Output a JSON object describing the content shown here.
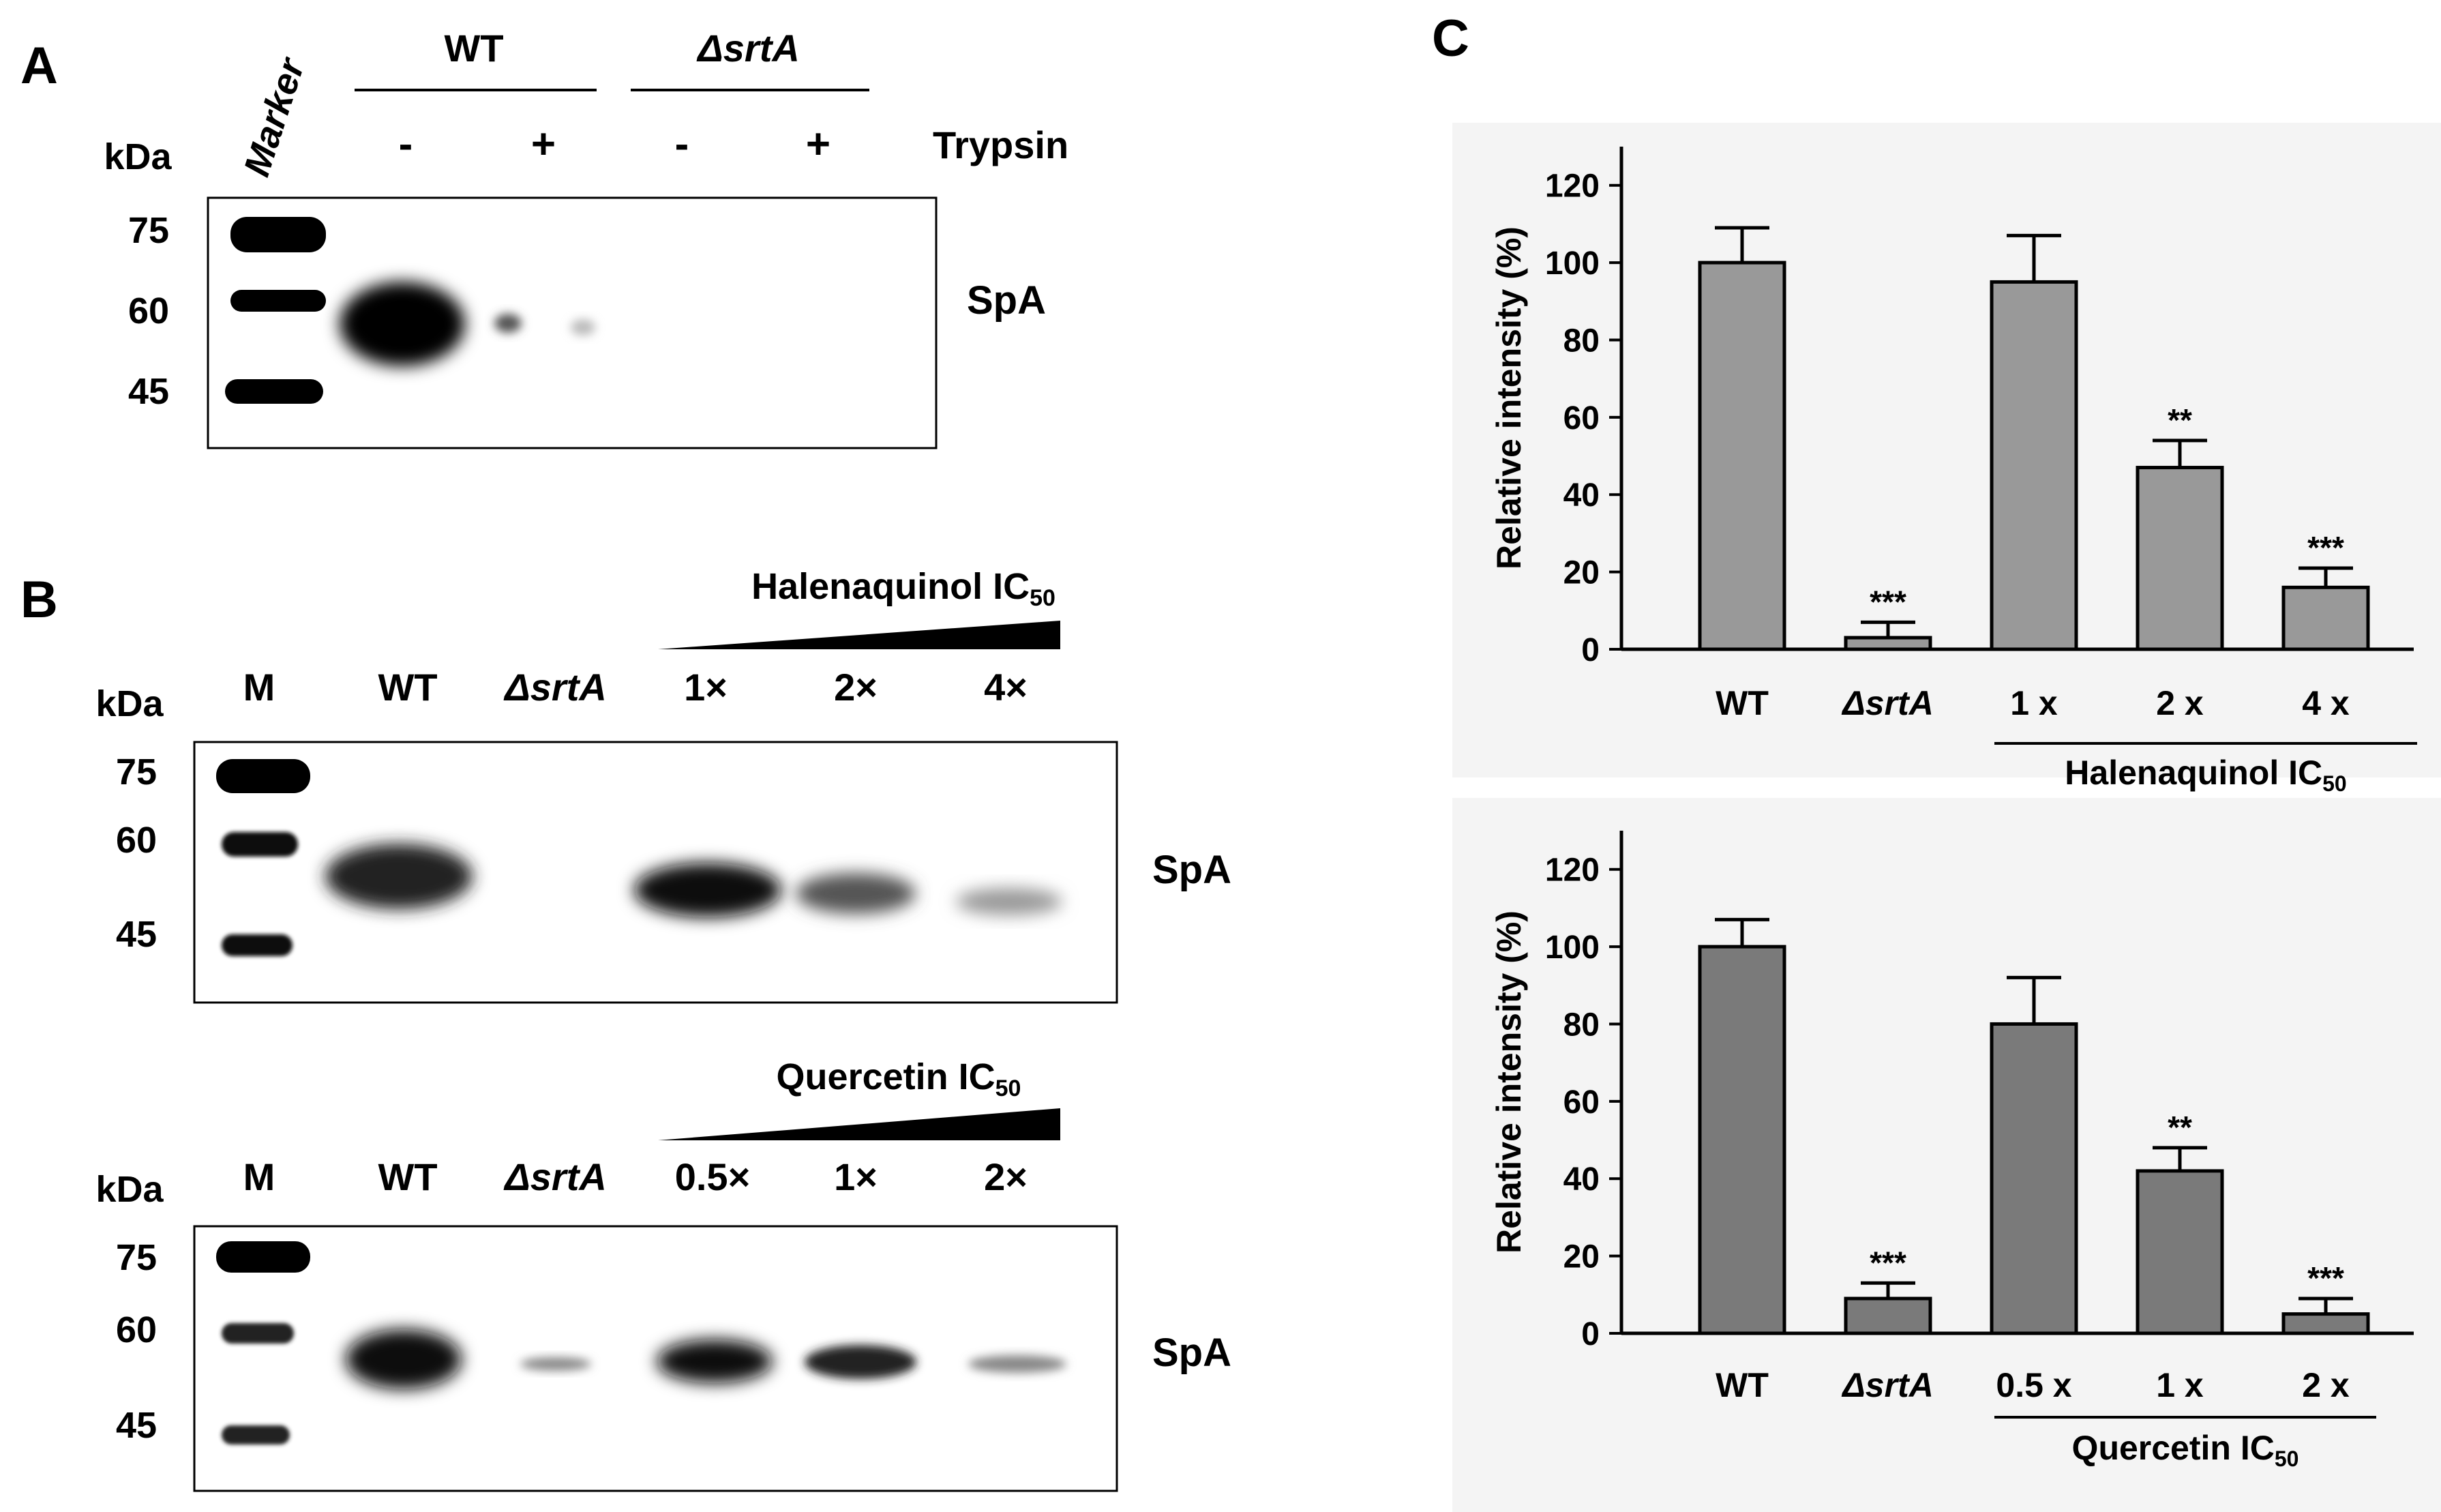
{
  "panel_a": {
    "letter": "A",
    "kda_label": "kDa",
    "marker_label": "Marker",
    "groups": [
      "WT",
      "ΔsrtA"
    ],
    "trypsin_signs": [
      "-",
      "+",
      "-",
      "+"
    ],
    "trypsin_label": "Trypsin",
    "mw_labels": [
      "75",
      "60",
      "45"
    ],
    "band_label": "SpA"
  },
  "panel_b": {
    "letter": "B",
    "blots": [
      {
        "treatment_label": "Halenaquinol IC",
        "treatment_sub": "50",
        "kda_label": "kDa",
        "lanes": [
          "M",
          "WT",
          "ΔsrtA",
          "1×",
          "2×",
          "4×"
        ],
        "mw_labels": [
          "75",
          "60",
          "45"
        ],
        "band_label": "SpA"
      },
      {
        "treatment_label": "Quercetin IC",
        "treatment_sub": "50",
        "kda_label": "kDa",
        "lanes": [
          "M",
          "WT",
          "ΔsrtA",
          "0.5×",
          "1×",
          "2×"
        ],
        "mw_labels": [
          "75",
          "60",
          "45"
        ],
        "band_label": "SpA"
      }
    ]
  },
  "panel_c": {
    "letter": "C"
  },
  "chart_data": [
    {
      "type": "bar",
      "categories": [
        "WT",
        "ΔsrtA",
        "1 x",
        "2 x",
        "4 x"
      ],
      "values": [
        100,
        3,
        95,
        47,
        16
      ],
      "errors": [
        9,
        4,
        12,
        7,
        5
      ],
      "significance": [
        "",
        "***",
        "",
        "**",
        "***"
      ],
      "ylabel": "Relative intensity (%)",
      "ylim": [
        0,
        130
      ],
      "yticks": [
        0,
        20,
        40,
        60,
        80,
        100,
        120
      ],
      "group_label": "Halenaquinol IC",
      "group_label_sub": "50",
      "bar_color": "#999999",
      "background": "#f4f4f4"
    },
    {
      "type": "bar",
      "categories": [
        "WT",
        "ΔsrtA",
        "0.5 x",
        "1 x",
        "2 x"
      ],
      "values": [
        100,
        9,
        80,
        42,
        5
      ],
      "errors": [
        7,
        4,
        12,
        6,
        4
      ],
      "significance": [
        "",
        "***",
        "",
        "**",
        "***"
      ],
      "ylabel": "Relative intensity (%)",
      "ylim": [
        0,
        130
      ],
      "yticks": [
        0,
        20,
        40,
        60,
        80,
        100,
        120
      ],
      "group_label": "Quercetin IC",
      "group_label_sub": "50",
      "bar_color": "#7a7a7a",
      "background": "#f4f4f4"
    }
  ]
}
